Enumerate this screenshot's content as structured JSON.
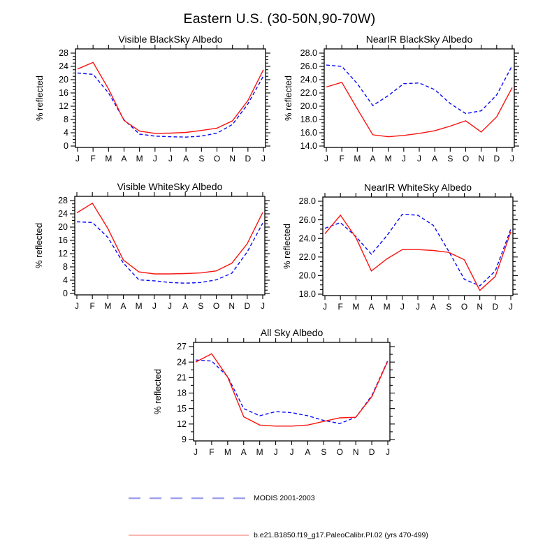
{
  "title": "Eastern U.S. (30-50N,90-70W)",
  "ylabel": "% reflected",
  "months": [
    "J",
    "F",
    "M",
    "A",
    "M",
    "J",
    "J",
    "A",
    "S",
    "O",
    "N",
    "D",
    "J"
  ],
  "colors": {
    "modis_line": "#0a0af5",
    "model_line": "#f81410",
    "legend_modis": "#9f9fee",
    "legend_model": "#f79d97",
    "axis": "#000000"
  },
  "legend": {
    "items": [
      {
        "label": "MODIS 2001-2003",
        "style": "dashed",
        "color": "#9f9fee"
      },
      {
        "label": "b.e21.B1850.f19_g17.PaleoCalibr.PI.02 (yrs 470-499)",
        "style": "solid",
        "color": "#f79d97"
      }
    ]
  },
  "chart_data": [
    {
      "type": "line",
      "title": "Visible BlackSky Albedo",
      "ylabel": "% reflected",
      "categories": [
        "J",
        "F",
        "M",
        "A",
        "M",
        "J",
        "J",
        "A",
        "S",
        "O",
        "N",
        "D",
        "J"
      ],
      "ylim": [
        0,
        28
      ],
      "ytick_step": 4,
      "ytick_decimals": 0,
      "y_minor_per_major": 3,
      "grid": false,
      "series": [
        {
          "name": "MODIS 2001-2003",
          "style": "dashed",
          "color": "#0a0af5",
          "values": [
            22.0,
            21.6,
            16.0,
            7.9,
            3.6,
            3.0,
            2.8,
            2.7,
            3.0,
            3.9,
            6.5,
            12.7,
            21.1
          ]
        },
        {
          "name": "b.e21.B1850.f19_g17.PaleoCalibr.PI.02 (yrs 470-499)",
          "style": "solid",
          "color": "#f81410",
          "values": [
            23.2,
            25.2,
            17.2,
            7.7,
            4.5,
            3.8,
            3.9,
            4.1,
            4.7,
            5.4,
            7.6,
            13.7,
            23.0
          ]
        }
      ]
    },
    {
      "type": "line",
      "title": "NearIR BlackSky Albedo",
      "ylabel": "% reflected",
      "categories": [
        "J",
        "F",
        "M",
        "A",
        "M",
        "J",
        "J",
        "A",
        "S",
        "O",
        "N",
        "D",
        "J"
      ],
      "ylim": [
        14,
        28
      ],
      "ytick_step": 2,
      "ytick_decimals": 1,
      "y_minor_per_major": 3,
      "grid": false,
      "series": [
        {
          "name": "MODIS 2001-2003",
          "style": "dashed",
          "color": "#0a0af5",
          "values": [
            26.2,
            26.0,
            23.4,
            20.1,
            21.6,
            23.4,
            23.5,
            22.5,
            20.4,
            18.9,
            19.3,
            21.7,
            26.1
          ]
        },
        {
          "name": "b.e21.B1850.f19_g17.PaleoCalibr.PI.02 (yrs 470-499)",
          "style": "solid",
          "color": "#f81410",
          "values": [
            22.9,
            23.6,
            19.6,
            15.7,
            15.4,
            15.6,
            15.9,
            16.3,
            17.0,
            17.8,
            16.1,
            18.4,
            22.8
          ]
        }
      ]
    },
    {
      "type": "line",
      "title": "Visible WhiteSky Albedo",
      "ylabel": "% reflected",
      "categories": [
        "J",
        "F",
        "M",
        "A",
        "M",
        "J",
        "J",
        "A",
        "S",
        "O",
        "N",
        "D",
        "J"
      ],
      "ylim": [
        0,
        28
      ],
      "ytick_step": 4,
      "ytick_decimals": 0,
      "y_minor_per_major": 3,
      "grid": false,
      "series": [
        {
          "name": "MODIS 2001-2003",
          "style": "dashed",
          "color": "#0a0af5",
          "values": [
            21.6,
            21.4,
            16.9,
            9.2,
            4.1,
            3.8,
            3.3,
            3.1,
            3.3,
            4.1,
            6.1,
            12.5,
            21.2
          ]
        },
        {
          "name": "b.e21.B1850.f19_g17.PaleoCalibr.PI.02 (yrs 470-499)",
          "style": "solid",
          "color": "#f81410",
          "values": [
            24.3,
            27.2,
            19.6,
            10.1,
            6.5,
            5.9,
            5.9,
            6.0,
            6.2,
            6.8,
            9.1,
            15.0,
            24.4
          ]
        }
      ]
    },
    {
      "type": "line",
      "title": "NearIR WhiteSky Albedo",
      "ylabel": "% reflected",
      "categories": [
        "J",
        "F",
        "M",
        "A",
        "M",
        "J",
        "J",
        "A",
        "S",
        "O",
        "N",
        "D",
        "J"
      ],
      "ylim": [
        18,
        28
      ],
      "ytick_step": 2,
      "ytick_decimals": 1,
      "y_minor_per_major": 3,
      "grid": false,
      "series": [
        {
          "name": "MODIS 2001-2003",
          "style": "dashed",
          "color": "#0a0af5",
          "values": [
            25.1,
            25.7,
            24.2,
            22.3,
            24.3,
            26.6,
            26.5,
            25.4,
            22.6,
            19.6,
            18.9,
            20.5,
            25.0
          ]
        },
        {
          "name": "b.e21.B1850.f19_g17.PaleoCalibr.PI.02 (yrs 470-499)",
          "style": "solid",
          "color": "#f81410",
          "values": [
            24.5,
            26.5,
            24.1,
            20.5,
            21.8,
            22.8,
            22.8,
            22.7,
            22.5,
            21.7,
            18.4,
            19.9,
            24.7
          ]
        }
      ]
    },
    {
      "type": "line",
      "title": "All Sky Albedo",
      "ylabel": "% reflected",
      "categories": [
        "J",
        "F",
        "M",
        "A",
        "M",
        "J",
        "J",
        "A",
        "S",
        "O",
        "N",
        "D",
        "J"
      ],
      "ylim": [
        9,
        27
      ],
      "ytick_step": 3,
      "ytick_decimals": 0,
      "y_minor_per_major": 1,
      "grid": false,
      "series": [
        {
          "name": "MODIS 2001-2003",
          "style": "dashed",
          "color": "#0a0af5",
          "values": [
            24.4,
            24.2,
            21.2,
            15.0,
            13.6,
            14.4,
            14.2,
            13.6,
            12.7,
            12.1,
            13.3,
            17.5,
            24.3
          ]
        },
        {
          "name": "b.e21.B1850.f19_g17.PaleoCalibr.PI.02 (yrs 470-499)",
          "style": "solid",
          "color": "#f81410",
          "values": [
            24.0,
            25.6,
            21.1,
            13.4,
            11.8,
            11.6,
            11.6,
            11.8,
            12.5,
            13.2,
            13.3,
            17.3,
            24.2
          ]
        }
      ]
    }
  ]
}
